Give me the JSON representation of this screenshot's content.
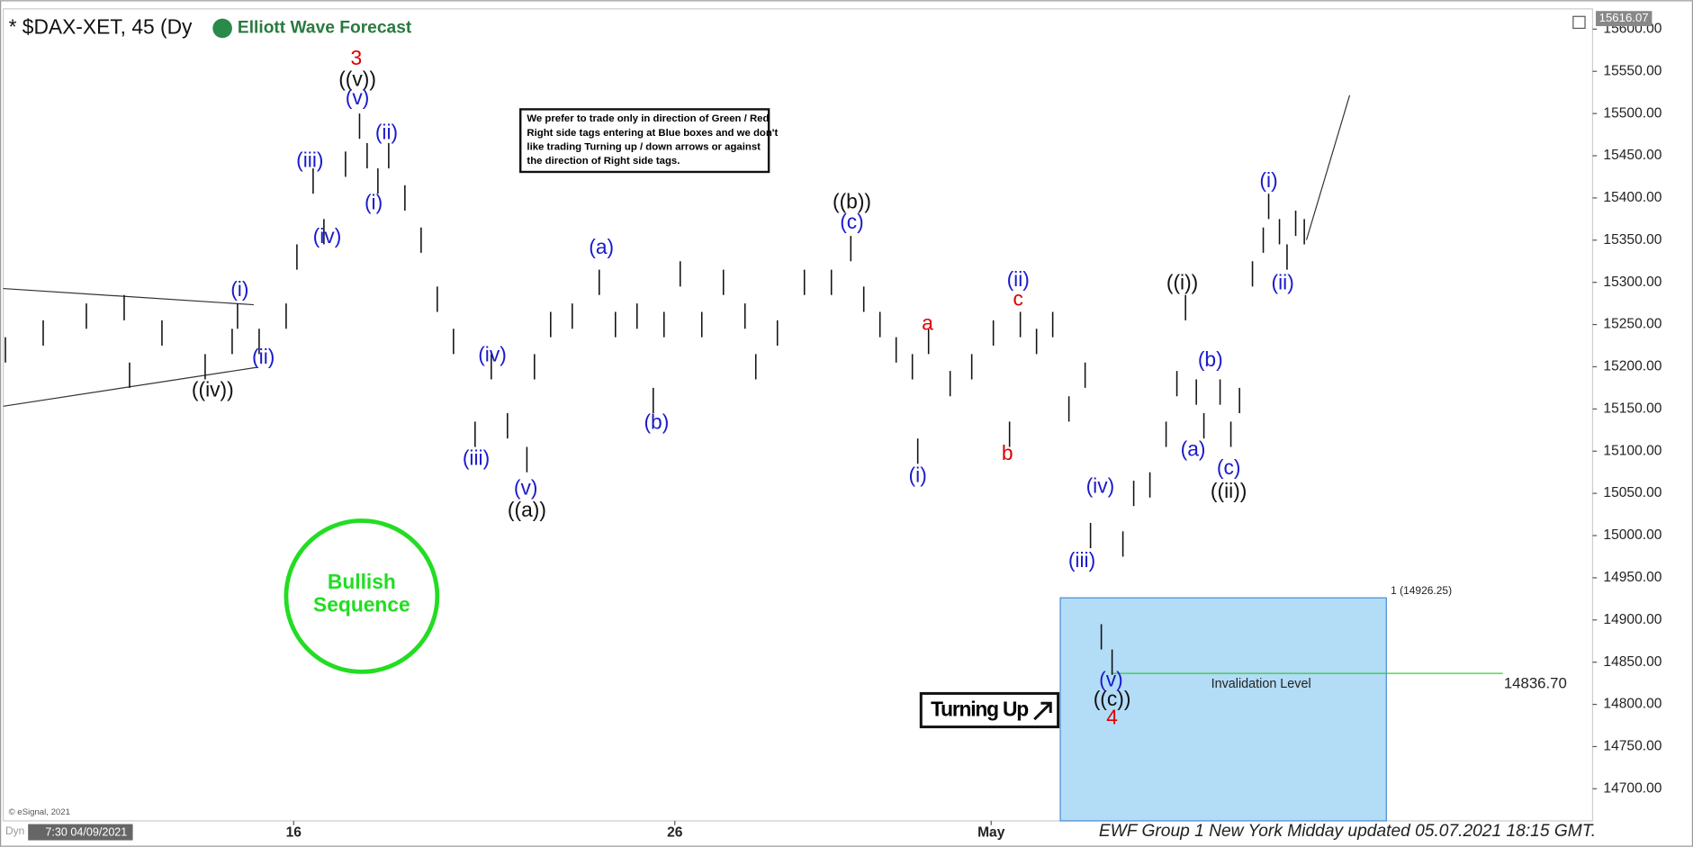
{
  "chart_data": {
    "type": "ohlc",
    "title": "* $DAX-XET, 45 (Dy",
    "brand": "Elliott Wave Forecast",
    "last_price": "15616.07",
    "notice": [
      "We prefer to trade only in direction of Green / Red",
      "Right side tags entering at Blue boxes and we don't",
      "like trading Turning up / down arrows or against",
      "the direction of Right side tags."
    ],
    "badge": [
      "Bullish",
      "Sequence"
    ],
    "signal": "Turning Up",
    "footer": "EWF Group 1 New York Midday updated 05.07.2021 18:15 GMT.",
    "copyright": "© eSignal, 2021",
    "cursor_label": "7:30 04/09/2021",
    "mode_label": "Dyn",
    "color": "#111111",
    "x": [
      5,
      40,
      80,
      115,
      120,
      150,
      190,
      215,
      220,
      240,
      265,
      275,
      290,
      300,
      320,
      333,
      340,
      350,
      360,
      375,
      390,
      405,
      420,
      440,
      455,
      470,
      488,
      495,
      510,
      530,
      555,
      570,
      590,
      605,
      615,
      630,
      650,
      670,
      690,
      700,
      720,
      745,
      770,
      788,
      800,
      815,
      830,
      845,
      850,
      860,
      880,
      900,
      920,
      935,
      945,
      960,
      975,
      990,
      1005,
      1010,
      1020,
      1030,
      1040,
      1050,
      1065,
      1080,
      1090,
      1098,
      1108,
      1115,
      1130,
      1140,
      1148,
      1160,
      1170,
      1175,
      1185,
      1192,
      1200,
      1208
    ],
    "high": [
      15235,
      15255,
      15275,
      15285,
      15205,
      15255,
      15215,
      15245,
      15275,
      15245,
      15275,
      15345,
      15435,
      15375,
      15455,
      15500,
      15465,
      15435,
      15465,
      15415,
      15365,
      15295,
      15245,
      15135,
      15215,
      15145,
      15105,
      15215,
      15265,
      15275,
      15315,
      15265,
      15275,
      15175,
      15265,
      15325,
      15265,
      15315,
      15275,
      15215,
      15255,
      15315,
      15315,
      15355,
      15295,
      15265,
      15235,
      15215,
      15115,
      15245,
      15195,
      15215,
      15255,
      15135,
      15265,
      15245,
      15265,
      15165,
      15205,
      15015,
      14895,
      14865,
      15005,
      15065,
      15075,
      15135,
      15195,
      15285,
      15185,
      15145,
      15185,
      15135,
      15175,
      15325,
      15365,
      15405,
      15375,
      15345,
      15385,
      15375
    ],
    "low": [
      15205,
      15225,
      15245,
      15255,
      15175,
      15225,
      15185,
      15215,
      15245,
      15215,
      15245,
      15315,
      15405,
      15345,
      15425,
      15470,
      15435,
      15405,
      15435,
      15385,
      15335,
      15265,
      15215,
      15105,
      15185,
      15115,
      15075,
      15185,
      15235,
      15245,
      15285,
      15235,
      15245,
      15145,
      15235,
      15295,
      15235,
      15285,
      15245,
      15185,
      15225,
      15285,
      15285,
      15325,
      15265,
      15235,
      15205,
      15185,
      15085,
      15215,
      15165,
      15185,
      15225,
      15105,
      15235,
      15215,
      15235,
      15135,
      15175,
      14985,
      14865,
      14835,
      14975,
      15035,
      15045,
      15105,
      15165,
      15255,
      15155,
      15115,
      15155,
      15105,
      15145,
      15295,
      15335,
      15375,
      15345,
      15315,
      15355,
      15345
    ],
    "xlim": [
      0,
      1475
    ],
    "xticks": [
      {
        "value": 272,
        "label": "16"
      },
      {
        "value": 625,
        "label": "26"
      },
      {
        "value": 918,
        "label": "May"
      }
    ],
    "ylim": [
      14662,
      15624
    ],
    "yticks": [
      {
        "value": 14700,
        "label": "14700.00"
      },
      {
        "value": 14750,
        "label": "14750.00"
      },
      {
        "value": 14800,
        "label": "14800.00"
      },
      {
        "value": 14850,
        "label": "14850.00"
      },
      {
        "value": 14900,
        "label": "14900.00"
      },
      {
        "value": 14950,
        "label": "14950.00"
      },
      {
        "value": 15000,
        "label": "15000.00"
      },
      {
        "value": 15050,
        "label": "15050.00"
      },
      {
        "value": 15100,
        "label": "15100.00"
      },
      {
        "value": 15150,
        "label": "15150.00"
      },
      {
        "value": 15200,
        "label": "15200.00"
      },
      {
        "value": 15250,
        "label": "15250.00"
      },
      {
        "value": 15300,
        "label": "15300.00"
      },
      {
        "value": 15350,
        "label": "15350.00"
      },
      {
        "value": 15400,
        "label": "15400.00"
      },
      {
        "value": 15450,
        "label": "15450.00"
      },
      {
        "value": 15500,
        "label": "15500.00"
      },
      {
        "value": 15550,
        "label": "15550.00"
      },
      {
        "value": 15600,
        "label": "15600.00"
      }
    ],
    "blue_box": {
      "x": [
        982,
        1284
      ],
      "top": 14926.25,
      "label": "1 (14926.25)",
      "color": "#b3dcf7"
    },
    "invalidation": {
      "value": 14836.7,
      "label": "14836.70",
      "text": "Invalidation Level",
      "color": "#33cc33"
    },
    "annotations": [
      {
        "text": "3",
        "x": 330,
        "y": 15564,
        "color": "#dd0000"
      },
      {
        "text": "((v))",
        "x": 331,
        "y": 15539,
        "color": "#111111"
      },
      {
        "text": "(v)",
        "x": 331,
        "y": 15517,
        "color": "#1a1acc"
      },
      {
        "text": "(ii)",
        "x": 358,
        "y": 15476,
        "color": "#1a1acc"
      },
      {
        "text": "(iii)",
        "x": 287,
        "y": 15443,
        "color": "#1a1acc"
      },
      {
        "text": "(i)",
        "x": 346,
        "y": 15393,
        "color": "#1a1acc"
      },
      {
        "text": "(iv)",
        "x": 303,
        "y": 15353,
        "color": "#1a1acc"
      },
      {
        "text": "(i)",
        "x": 222,
        "y": 15290,
        "color": "#1a1acc"
      },
      {
        "text": "(ii)",
        "x": 244,
        "y": 15210,
        "color": "#1a1acc"
      },
      {
        "text": "((iv))",
        "x": 197,
        "y": 15171,
        "color": "#111111"
      },
      {
        "text": "(iv)",
        "x": 456,
        "y": 15213,
        "color": "#1a1acc"
      },
      {
        "text": "(iii)",
        "x": 441,
        "y": 15090,
        "color": "#1a1acc"
      },
      {
        "text": "(v)",
        "x": 487,
        "y": 15055,
        "color": "#1a1acc"
      },
      {
        "text": "((a))",
        "x": 488,
        "y": 15029,
        "color": "#111111"
      },
      {
        "text": "(a)",
        "x": 557,
        "y": 15340,
        "color": "#1a1acc"
      },
      {
        "text": "(b)",
        "x": 608,
        "y": 15133,
        "color": "#1a1acc"
      },
      {
        "text": "((b))",
        "x": 789,
        "y": 15394,
        "color": "#111111"
      },
      {
        "text": "(c)",
        "x": 789,
        "y": 15370,
        "color": "#1a1acc"
      },
      {
        "text": "a",
        "x": 859,
        "y": 15250,
        "color": "#dd0000"
      },
      {
        "text": "(i)",
        "x": 850,
        "y": 15070,
        "color": "#1a1acc"
      },
      {
        "text": "(ii)",
        "x": 943,
        "y": 15302,
        "color": "#1a1acc"
      },
      {
        "text": "c",
        "x": 943,
        "y": 15279,
        "color": "#dd0000"
      },
      {
        "text": "b",
        "x": 933,
        "y": 15096,
        "color": "#dd0000"
      },
      {
        "text": "(iv)",
        "x": 1019,
        "y": 15057,
        "color": "#1a1acc"
      },
      {
        "text": "(iii)",
        "x": 1002,
        "y": 14969,
        "color": "#1a1acc"
      },
      {
        "text": "(v)",
        "x": 1029,
        "y": 14828,
        "color": "#1a1acc"
      },
      {
        "text": "((c))",
        "x": 1030,
        "y": 14805,
        "color": "#111111"
      },
      {
        "text": "4",
        "x": 1030,
        "y": 14783,
        "color": "#dd0000"
      },
      {
        "text": "((i))",
        "x": 1095,
        "y": 15298,
        "color": "#111111"
      },
      {
        "text": "(b)",
        "x": 1121,
        "y": 15207,
        "color": "#1a1acc"
      },
      {
        "text": "(a)",
        "x": 1105,
        "y": 15101,
        "color": "#1a1acc"
      },
      {
        "text": "(c)",
        "x": 1138,
        "y": 15079,
        "color": "#1a1acc"
      },
      {
        "text": "((ii))",
        "x": 1138,
        "y": 15051,
        "color": "#111111"
      },
      {
        "text": "(i)",
        "x": 1175,
        "y": 15419,
        "color": "#1a1acc"
      },
      {
        "text": "(ii)",
        "x": 1188,
        "y": 15298,
        "color": "#1a1acc"
      }
    ]
  }
}
